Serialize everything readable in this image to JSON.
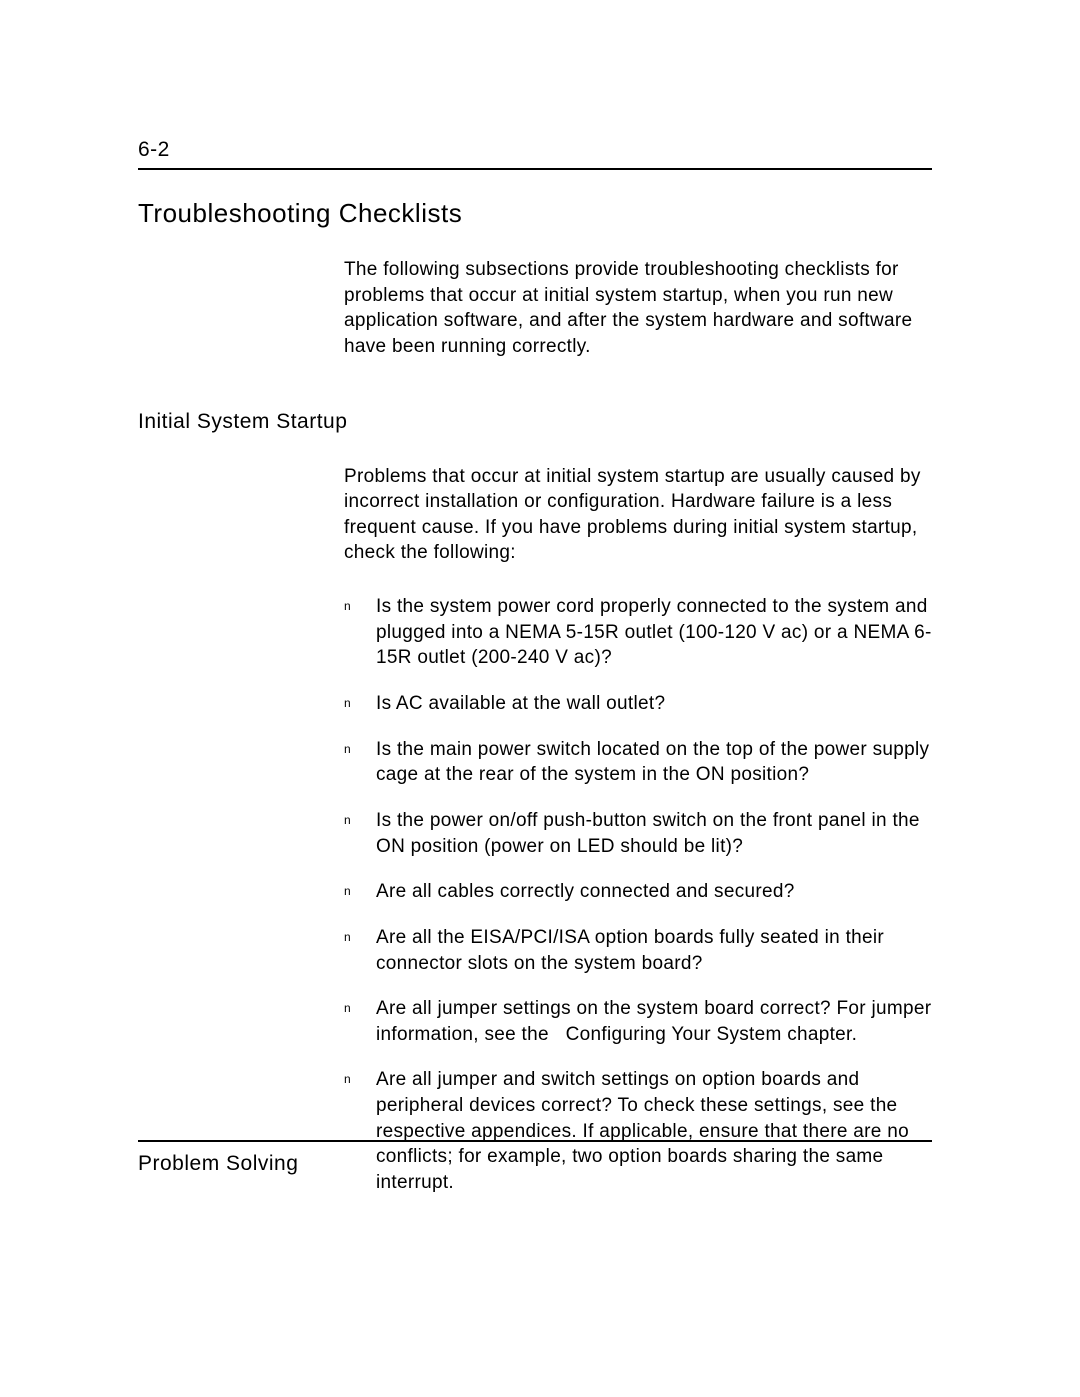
{
  "page": {
    "number": "6-2",
    "footer": "Problem Solving"
  },
  "section": {
    "heading": "Troubleshooting Checklists",
    "intro": "The following subsections provide troubleshooting checklists for problems that occur at initial system startup, when you run new application software, and after the system hardware and software have been running correctly."
  },
  "subsection": {
    "heading": "Initial System Startup",
    "intro": "Problems that occur at initial system startup are usually caused by incorrect installation or configuration. Hardware failure is a less frequent cause. If you have problems during initial system startup, check the following:",
    "bullets": [
      "Is the system power cord properly connected to the system and plugged into a NEMA 5-15R outlet (100-120 V ac) or a NEMA 6-15R outlet (200-240 V ac)?",
      "Is AC available at the wall outlet?",
      "Is the main power switch located on the top of the power supply cage at the rear of the system in the ON position?",
      "Is the power on/off push-button switch on the front panel in the ON position (power on LED should be lit)?",
      "Are all cables correctly connected and secured?",
      "Are all the EISA/PCI/ISA option boards fully seated in their connector slots on the system board?",
      "Are all jumper settings on the system board correct? For jumper information, see the   Configuring Your System chapter.",
      "Are all jumper and switch settings on option boards and peripheral devices correct? To check these settings, see the respective appendices. If applicable, ensure that there are no conflicts; for example, two option boards sharing the same interrupt."
    ]
  },
  "bullet_marker": "n",
  "styling": {
    "background_color": "#ffffff",
    "text_color": "#000000",
    "rule_color": "#000000",
    "page_number_fontsize": 21,
    "section_heading_fontsize": 26,
    "sub_heading_fontsize": 21,
    "body_fontsize": 19,
    "bullet_marker_fontsize": 12,
    "font_family": "Arial, Helvetica, sans-serif"
  }
}
